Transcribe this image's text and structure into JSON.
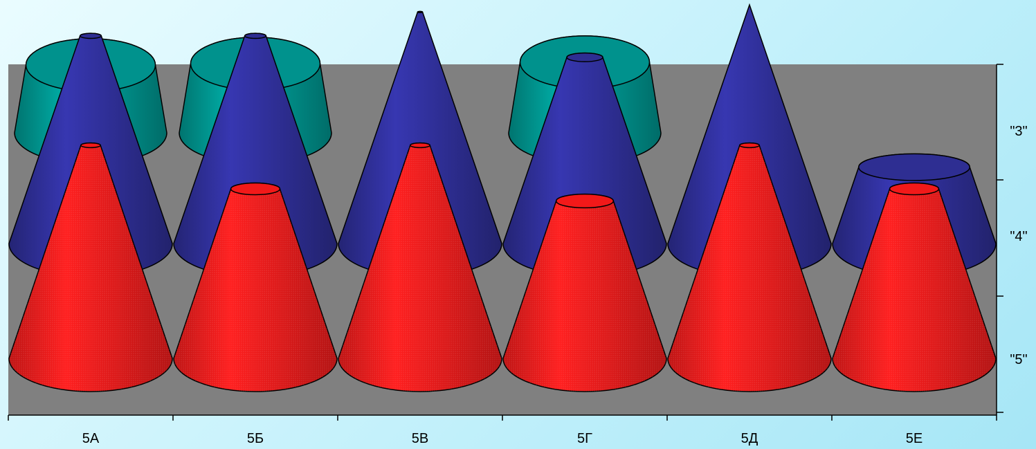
{
  "chart_data": {
    "type": "bar",
    "shape": "3d-cone-truncated",
    "title": "",
    "xlabel": "",
    "ylabel": "",
    "categories": [
      "5А",
      "5Б",
      "5В",
      "5Г",
      "5Д",
      "5Е"
    ],
    "series": [
      {
        "name": "\"3\"",
        "values": [
          0.7,
          0.75,
          0.0,
          0.8,
          0.0,
          0.0
        ],
        "color": "#009a94"
      },
      {
        "name": "\"4\"",
        "values": [
          0.87,
          0.87,
          0.97,
          0.78,
          1.0,
          0.32
        ],
        "color": "#30309a"
      },
      {
        "name": "\"5\"",
        "values": [
          0.88,
          0.7,
          0.88,
          0.65,
          0.88,
          0.7
        ],
        "color": "#ff1a1a"
      }
    ],
    "depth_axis_labels": [
      "\"3\"",
      "\"4\"",
      "\"5\""
    ],
    "floor_color": "#808080",
    "grid": false,
    "legend": "none"
  }
}
